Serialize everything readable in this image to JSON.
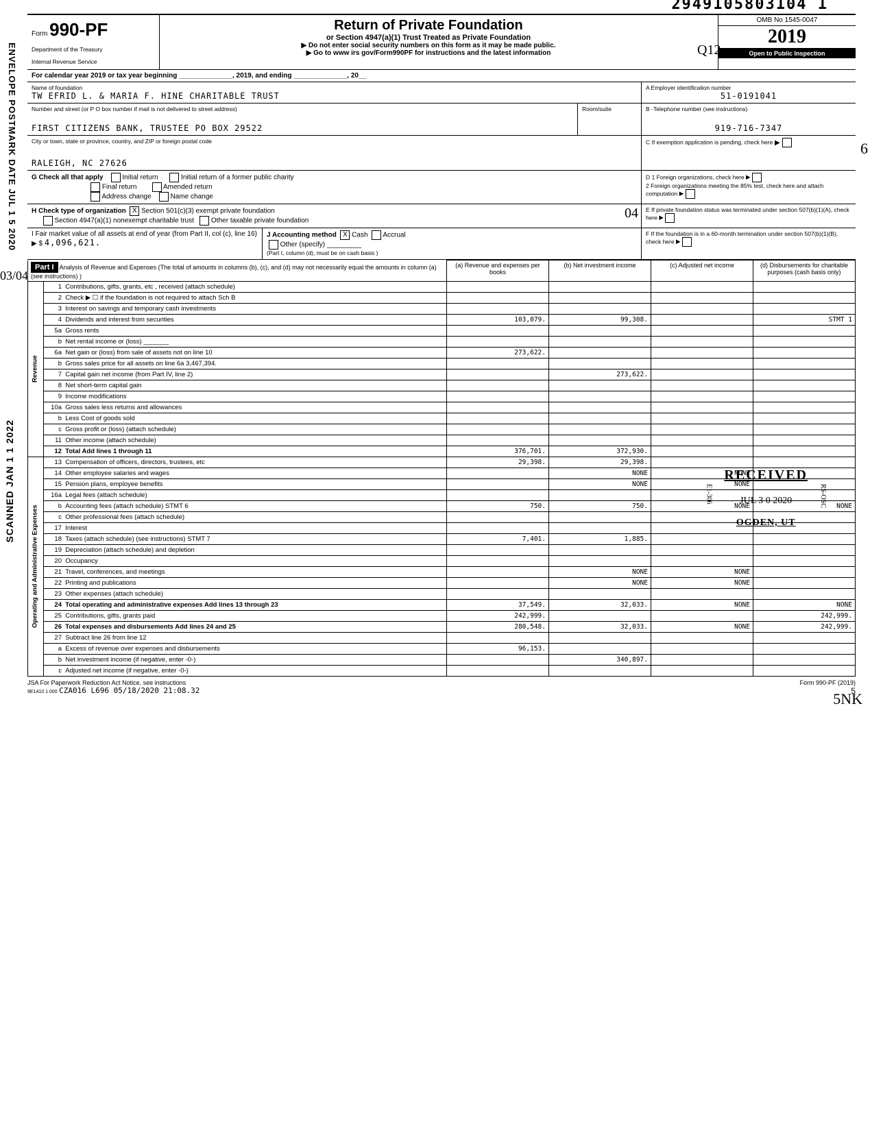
{
  "doc_number": "2949105803104 1",
  "form": {
    "form_text": "990-PF",
    "form_prefix": "Form",
    "dept1": "Department of the Treasury",
    "dept2": "Internal Revenue Service",
    "title": "Return of Private Foundation",
    "subtitle1": "or Section 4947(a)(1) Trust Treated as Private Foundation",
    "subtitle2": "▶ Do not enter social security numbers on this form as it may be made public.",
    "subtitle3": "▶ Go to www irs gov/Form990PF for instructions and the latest information",
    "omb": "OMB No 1545-0047",
    "year": "2019",
    "inspection": "Open to Public Inspection",
    "hand_q": "Q12"
  },
  "calendar_line": "For calendar year 2019 or tax year beginning ______________, 2019, and ending ______________, 20__",
  "foundation": {
    "name_label": "Name of foundation",
    "name": "TW EFRID L. & MARIA F. HINE CHARITABLE TRUST",
    "ein_label": "A  Employer identification number",
    "ein": "51-0191041",
    "addr_label": "Number and street (or P O  box number if mail is not delivered to street address)",
    "room_label": "Room/suite",
    "phone_label": "B  -Telephone number (see instructions)",
    "addr": "FIRST CITIZENS BANK, TRUSTEE PO BOX 29522",
    "phone": "919-716-7347",
    "city_label": "City or town, state or province, country, and ZIP or foreign postal code",
    "city": "RALEIGH, NC 27626",
    "c_label": "C  If exemption application is pending, check here",
    "hand_6": "6"
  },
  "checks": {
    "g_label": "G Check all that apply",
    "g_opts": [
      "Initial return",
      "Final return",
      "Address change",
      "Initial return of a former public charity",
      "Amended return",
      "Name change"
    ],
    "h_label": "H Check type of organization",
    "h1": "Section 501(c)(3)  exempt private foundation",
    "h2": "Section 4947(a)(1) nonexempt charitable trust",
    "h3": "Other taxable private foundation",
    "hand_04": "04",
    "d1": "D  1 Foreign organizations, check here",
    "d2": "2 Foreign organizations meeting the 85% test, check here and attach computation",
    "e": "E  If private foundation status was terminated under section 507(b)(1)(A), check here",
    "f": "F  If the foundation is in a 60-month termination under section 507(b)(1)(B), check here",
    "i_label": "I  Fair market value of all assets at end of year (from Part II, col (c), line 16) ▶ $",
    "i_value": "4,096,621.",
    "j_label": "J Accounting method",
    "j_cash": "Cash",
    "j_accrual": "Accrual",
    "j_other": "Other (specify)",
    "j_note": "(Part I, column (d), must be on cash basis )"
  },
  "part1": {
    "header": "Part I",
    "title": "Analysis of Revenue and Expenses (The total of amounts in columns (b), (c), and (d) may not necessarily equal the amounts in column (a) (see instructions) )",
    "col_a": "(a) Revenue and expenses per books",
    "col_b": "(b) Net investment income",
    "col_c": "(c) Adjusted net income",
    "col_d": "(d) Disbursements for charitable purposes (cash basis only)"
  },
  "revenue_label": "Revenue",
  "expenses_label": "Operating and Administrative Expenses",
  "rows": [
    {
      "n": "1",
      "desc": "Contributions, gifts, grants, etc , received (attach schedule)"
    },
    {
      "n": "2",
      "desc": "Check ▶ ☐ if the foundation is not required to attach Sch B"
    },
    {
      "n": "3",
      "desc": "Interest on savings and temporary cash investments"
    },
    {
      "n": "4",
      "desc": "Dividends and interest from securities",
      "a": "103,079.",
      "b": "99,308.",
      "d": "STMT 1"
    },
    {
      "n": "5a",
      "desc": "Gross rents"
    },
    {
      "n": "b",
      "desc": "Net rental income or (loss) _______"
    },
    {
      "n": "6a",
      "desc": "Net gain or (loss) from sale of assets not on line 10",
      "a": "273,622."
    },
    {
      "n": "b",
      "desc": "Gross sales price for all assets on line 6a    3,467,394."
    },
    {
      "n": "7",
      "desc": "Capital gain net income (from Part IV, line 2)",
      "b": "273,622."
    },
    {
      "n": "8",
      "desc": "Net short-term capital gain"
    },
    {
      "n": "9",
      "desc": "Income modifications"
    },
    {
      "n": "10a",
      "desc": "Gross sales less returns and allowances"
    },
    {
      "n": "b",
      "desc": "Less Cost of goods sold"
    },
    {
      "n": "c",
      "desc": "Gross profit or (loss) (attach schedule)"
    },
    {
      "n": "11",
      "desc": "Other income (attach schedule)"
    },
    {
      "n": "12",
      "desc": "Total Add lines 1 through 11",
      "a": "376,701.",
      "b": "372,930.",
      "bold": true
    }
  ],
  "exp_rows": [
    {
      "n": "13",
      "desc": "Compensation of officers, directors, trustees, etc",
      "a": "29,398.",
      "b": "29,398."
    },
    {
      "n": "14",
      "desc": "Other employee salaries and wages",
      "b": "NONE",
      "c": "NONE"
    },
    {
      "n": "15",
      "desc": "Pension plans, employee benefits",
      "b": "NONE",
      "c": "NONE"
    },
    {
      "n": "16a",
      "desc": "Legal fees (attach schedule)"
    },
    {
      "n": "b",
      "desc": "Accounting fees (attach schedule) STMT 6",
      "a": "750.",
      "b": "750.",
      "c": "NONE",
      "d": "NONE"
    },
    {
      "n": "c",
      "desc": "Other professional fees (attach schedule)"
    },
    {
      "n": "17",
      "desc": "Interest"
    },
    {
      "n": "18",
      "desc": "Taxes (attach schedule) (see instructions) STMT 7",
      "a": "7,401.",
      "b": "1,885."
    },
    {
      "n": "19",
      "desc": "Depreciation (attach schedule) and depletion"
    },
    {
      "n": "20",
      "desc": "Occupancy"
    },
    {
      "n": "21",
      "desc": "Travel, conferences, and meetings",
      "b": "NONE",
      "c": "NONE"
    },
    {
      "n": "22",
      "desc": "Printing and publications",
      "b": "NONE",
      "c": "NONE"
    },
    {
      "n": "23",
      "desc": "Other expenses (attach schedule)"
    },
    {
      "n": "24",
      "desc": "Total operating and administrative expenses Add lines 13 through 23",
      "a": "37,549.",
      "b": "32,033.",
      "c": "NONE",
      "d": "NONE",
      "bold": true
    },
    {
      "n": "25",
      "desc": "Contributions, gifts, grants paid",
      "a": "242,999.",
      "d": "242,999."
    },
    {
      "n": "26",
      "desc": "Total expenses and disbursements Add lines 24 and 25",
      "a": "280,548.",
      "b": "32,033.",
      "c": "NONE",
      "d": "242,999.",
      "bold": true
    },
    {
      "n": "27",
      "desc": "Subtract line 26 from line 12"
    },
    {
      "n": "a",
      "desc": "Excess of revenue over expenses and disbursements",
      "a": "96,153."
    },
    {
      "n": "b",
      "desc": "Net investment income (if negative, enter -0-)",
      "b": "340,897."
    },
    {
      "n": "c",
      "desc": "Adjusted net income (if negative, enter -0-)"
    }
  ],
  "stamp": {
    "word": "RECEIVED",
    "date": "JUL 3 0 2020",
    "loc": "OGDEN, UT",
    "code1": "E1-306",
    "code2": "RS-OSC"
  },
  "side": {
    "envelope": "ENVELOPE POSTMARK DATE JUL 1 5 2020",
    "scanned": "SCANNED JAN 1 1 2022",
    "hand": "03/04"
  },
  "footer": {
    "jsa": "JSA For Paperwork Reduction Act Notice, see instructions",
    "code": "9E1410 1 000",
    "batch": "CZA016 L696 05/18/2020 21:08.32",
    "form": "Form 990-PF (2019)",
    "page": "5",
    "hand": "5NK"
  }
}
